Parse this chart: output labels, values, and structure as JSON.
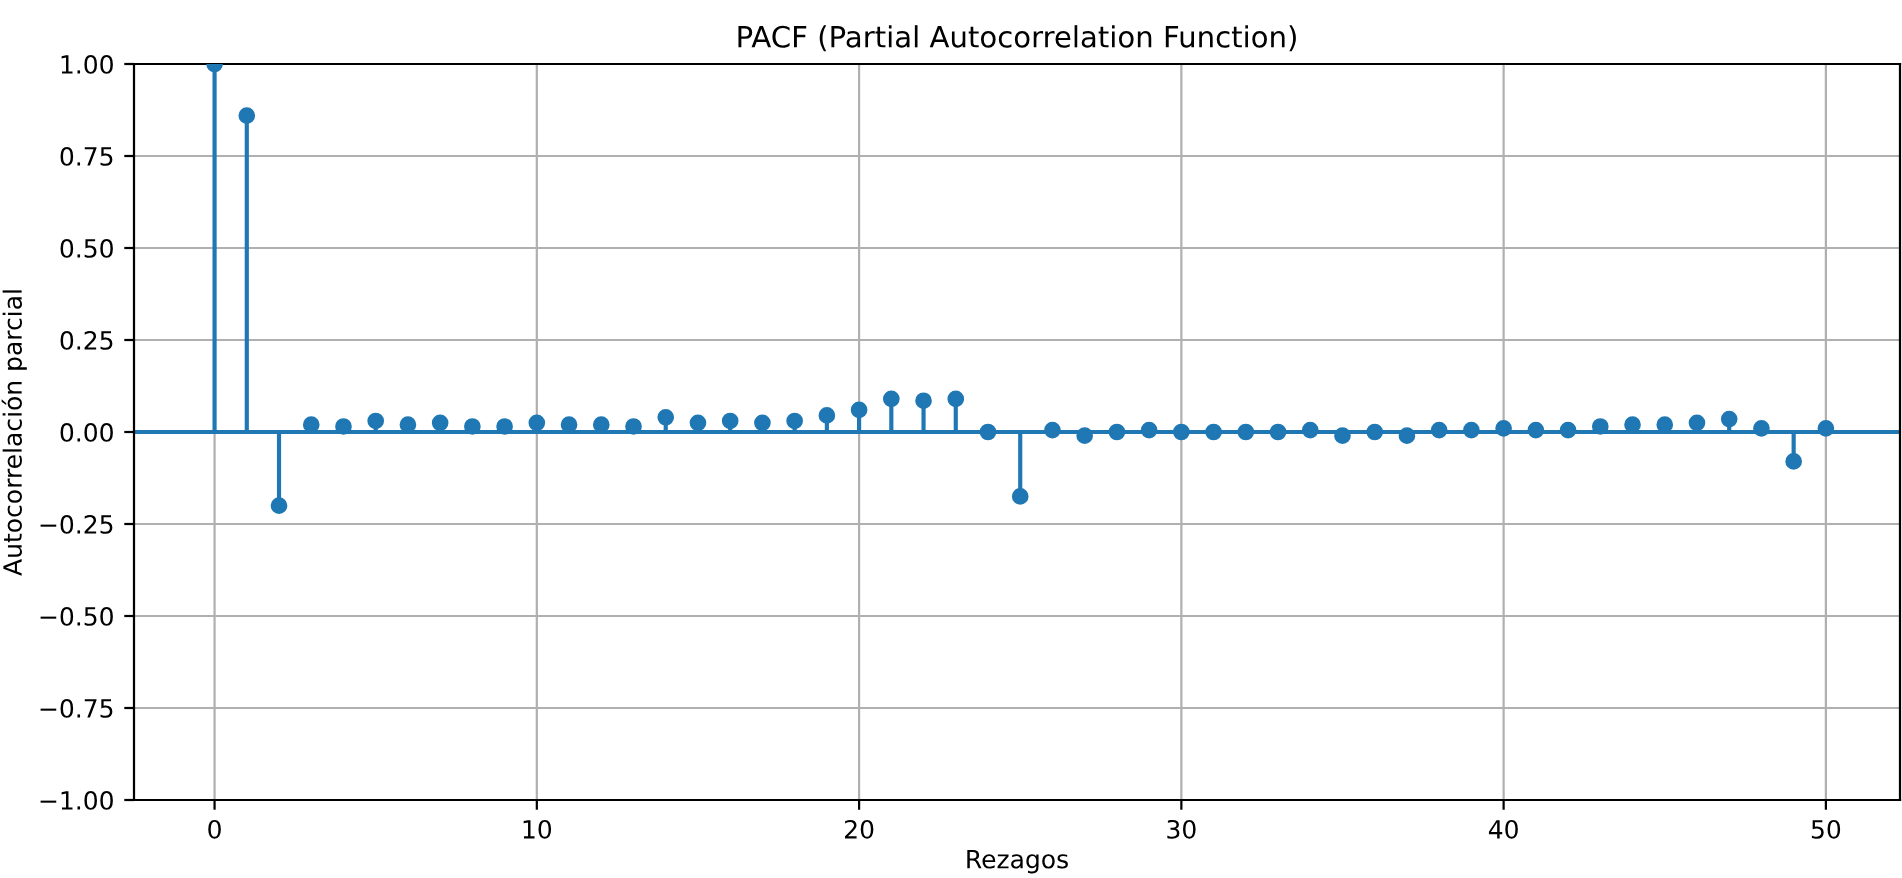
{
  "chart_data": {
    "type": "lollipop",
    "title": "PACF (Partial Autocorrelation Function)",
    "xlabel": "Rezagos",
    "ylabel": "Autocorrelación parcial",
    "x": [
      0,
      1,
      2,
      3,
      4,
      5,
      6,
      7,
      8,
      9,
      10,
      11,
      12,
      13,
      14,
      15,
      16,
      17,
      18,
      19,
      20,
      21,
      22,
      23,
      24,
      25,
      26,
      27,
      28,
      29,
      30,
      31,
      32,
      33,
      34,
      35,
      36,
      37,
      38,
      39,
      40,
      41,
      42,
      43,
      44,
      45,
      46,
      47,
      48,
      49,
      50
    ],
    "series": [
      {
        "color": "#1f77b4",
        "values": [
          1.0,
          0.86,
          -0.2,
          0.02,
          0.015,
          0.03,
          0.02,
          0.025,
          0.015,
          0.015,
          0.025,
          0.02,
          0.02,
          0.015,
          0.04,
          0.025,
          0.03,
          0.025,
          0.03,
          0.045,
          0.06,
          0.09,
          0.085,
          0.09,
          0.0,
          -0.175,
          0.005,
          -0.01,
          0.0,
          0.005,
          0.0,
          0.0,
          0.0,
          0.0,
          0.005,
          -0.01,
          0.0,
          -0.01,
          0.005,
          0.005,
          0.01,
          0.005,
          0.005,
          0.015,
          0.02,
          0.02,
          0.025,
          0.035,
          0.01,
          -0.08,
          0.01
        ]
      }
    ],
    "xlim": [
      -2.5,
      52.3
    ],
    "ylim": [
      -1.0,
      1.0
    ],
    "xticks": [
      0,
      10,
      20,
      30,
      40,
      50
    ],
    "yticks": [
      {
        "value": -1.0,
        "label": "−1.00"
      },
      {
        "value": -0.75,
        "label": "−0.75"
      },
      {
        "value": -0.5,
        "label": "−0.50"
      },
      {
        "value": -0.25,
        "label": "−0.25"
      },
      {
        "value": 0.0,
        "label": "0.00"
      },
      {
        "value": 0.25,
        "label": "0.25"
      },
      {
        "value": 0.5,
        "label": "0.50"
      },
      {
        "value": 0.75,
        "label": "0.75"
      },
      {
        "value": 1.0,
        "label": "1.00"
      }
    ],
    "ref_lines": [
      {
        "axis": "y",
        "value": 0,
        "color": "#1f77b4"
      }
    ],
    "grid": true,
    "marker": "circle",
    "legend": false
  }
}
